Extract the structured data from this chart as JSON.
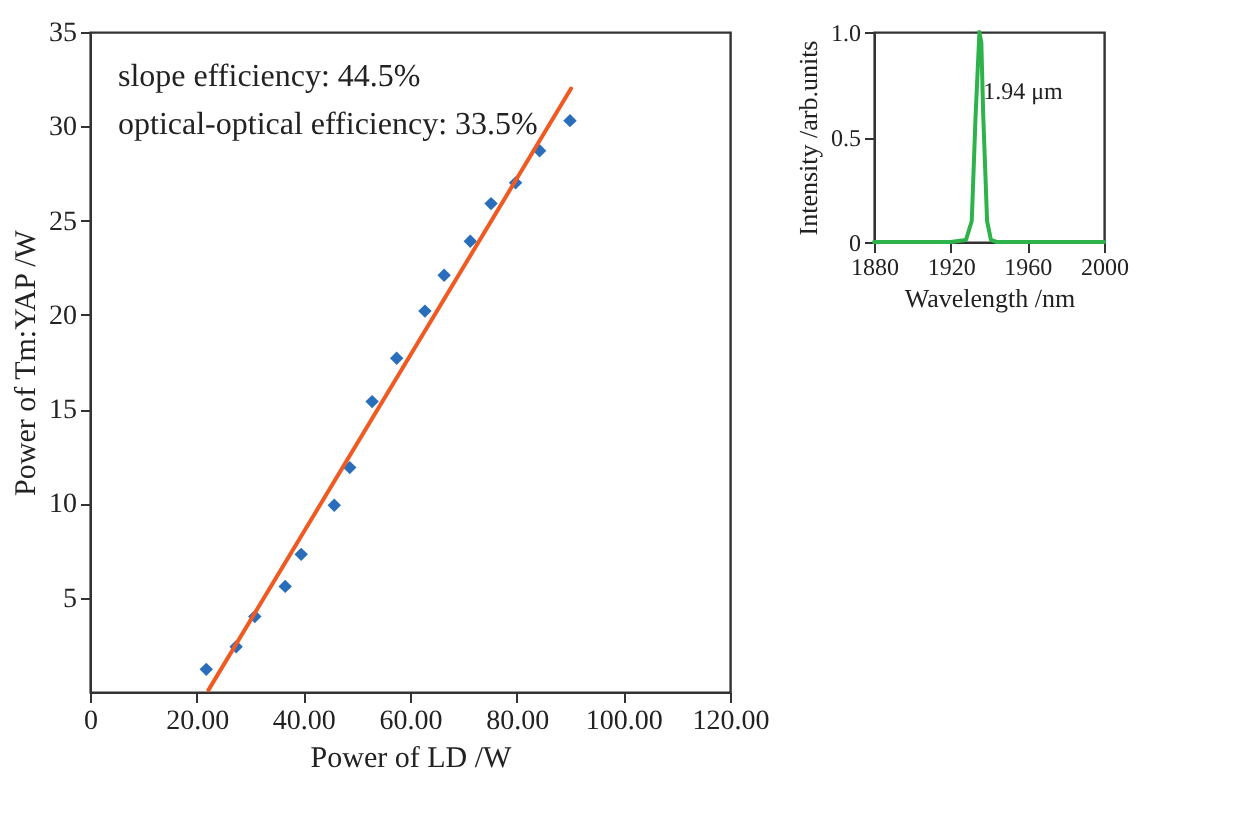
{
  "chart_data": [
    {
      "type": "scatter",
      "xlabel": "Power of LD /W",
      "ylabel": "Power of Tm:YAP /W",
      "annotations": [
        "slope efficiency: 44.5%",
        "optical-optical efficiency: 33.5%"
      ],
      "series": [
        {
          "type": "scatter",
          "color": "#2a6ebb",
          "marker": "diamond",
          "x": [
            21.8,
            27.4,
            30.9,
            36.6,
            39.6,
            45.8,
            48.7,
            52.9,
            57.5,
            62.8,
            66.4,
            71.3,
            75.2,
            79.8,
            84.3,
            90.0
          ],
          "values": [
            1.2,
            2.4,
            4.0,
            5.6,
            7.3,
            9.9,
            11.9,
            15.4,
            17.7,
            20.2,
            22.1,
            23.9,
            25.9,
            27.0,
            28.7,
            30.3
          ]
        },
        {
          "type": "line",
          "color": "#f05a22",
          "line_style": "solid",
          "x": [
            22.2,
            90.2
          ],
          "values": [
            0.1,
            32.0
          ]
        }
      ],
      "xlim": [
        0,
        120
      ],
      "ylim": [
        0,
        35
      ],
      "xticks": [
        0,
        {
          "value": 20,
          "label": "20.00"
        },
        {
          "value": 40,
          "label": "40.00"
        },
        {
          "value": 60,
          "label": "60.00"
        },
        {
          "value": 80,
          "label": "80.00"
        },
        {
          "value": 100,
          "label": "100.00"
        },
        {
          "value": 120,
          "label": "120.00"
        }
      ],
      "yticks": [
        5,
        10,
        15,
        20,
        25,
        30,
        35
      ],
      "grid": false
    },
    {
      "type": "line",
      "xlabel": "Wavelength /nm",
      "ylabel": "Intensity /arb.units",
      "annotations": [
        {
          "text": "1.94 μm",
          "x": 1937,
          "y": 0.72
        }
      ],
      "series": [
        {
          "color": "#2db34a",
          "line_style": "solid",
          "x": [
            1880,
            1900,
            1920,
            1928,
            1931,
            1933,
            1935,
            1936,
            1937,
            1939,
            1941,
            1944,
            1960,
            1980,
            2000
          ],
          "values": [
            0,
            0,
            0,
            0.01,
            0.1,
            0.6,
            1.0,
            0.95,
            0.6,
            0.1,
            0.01,
            0,
            0,
            0,
            0
          ]
        }
      ],
      "xlim": [
        1880,
        2000
      ],
      "ylim": [
        0,
        1.0
      ],
      "xticks": [
        1880,
        1920,
        1960,
        2000
      ],
      "yticks": [
        0,
        0.5,
        {
          "value": 1.0,
          "label": "1.0"
        }
      ],
      "grid": false
    }
  ]
}
